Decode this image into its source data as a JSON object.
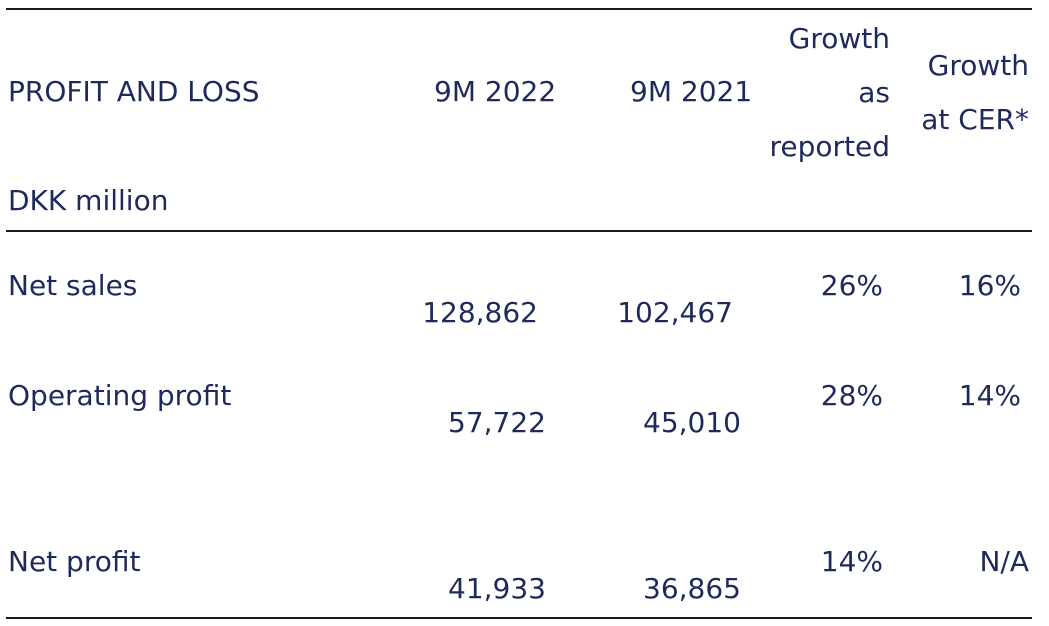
{
  "header": {
    "section_title": "PROFIT AND LOSS",
    "unit": "DKK million",
    "col_9m2022": "9M 2022",
    "col_9m2021": "9M 2021",
    "col_growth_reported": [
      "Growth",
      "as",
      "reported"
    ],
    "col_growth_cer": [
      "Growth",
      "at CER*"
    ]
  },
  "rows": [
    {
      "label": "Net sales",
      "v2022": "128,862",
      "v2021": "102,467",
      "growth_reported": "26%",
      "growth_cer": "16%"
    },
    {
      "label": "Operating profit",
      "v2022": "57,722",
      "v2021": "45,010",
      "growth_reported": "28%",
      "growth_cer": "14%"
    },
    {
      "label": "Net profit",
      "v2022": "41,933",
      "v2021": "36,865",
      "growth_reported": "14%",
      "growth_cer": "N/A"
    }
  ]
}
